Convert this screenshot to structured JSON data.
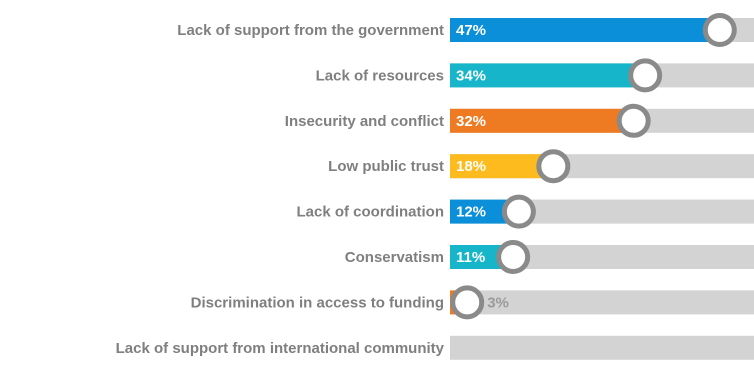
{
  "chart_data": {
    "type": "bar",
    "orientation": "horizontal",
    "categories": [
      "Lack of support from the government",
      "Lack of resources",
      "Insecurity and conflict",
      "Low public trust",
      "Lack of coordination",
      "Conservatism",
      "Discrimination in access to funding",
      "Lack of  support from international community"
    ],
    "values": [
      47,
      34,
      32,
      18,
      12,
      11,
      3,
      0
    ],
    "value_labels": [
      "47%",
      "34%",
      "32%",
      "18%",
      "12%",
      "11%",
      "3%",
      ""
    ],
    "bar_colors": [
      "#0a8fd8",
      "#17b5c9",
      "#ee7a22",
      "#fdbb1e",
      "#0a8fd8",
      "#17b5c9",
      "#ee7a22",
      "#0a8fd8"
    ],
    "track_color": "#d3d3d3",
    "marker_stroke": "#8a8a8a",
    "xlim": [
      0,
      50
    ],
    "title": "",
    "xlabel": "",
    "ylabel": "",
    "grid": false,
    "legend": "none"
  }
}
